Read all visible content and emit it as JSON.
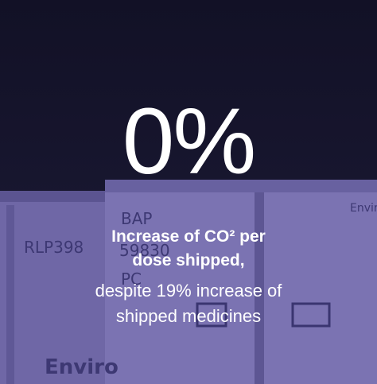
{
  "stat": {
    "value": "0%",
    "headline_lines": [
      "Increase of CO² per",
      "dose shipped,"
    ],
    "detail_lines": [
      "despite 19% increase of",
      "shipped medicines"
    ]
  },
  "photo_texts": [
    "RLP398",
    "BAP",
    "59830",
    "PC",
    "Enviro",
    "Envir"
  ]
}
